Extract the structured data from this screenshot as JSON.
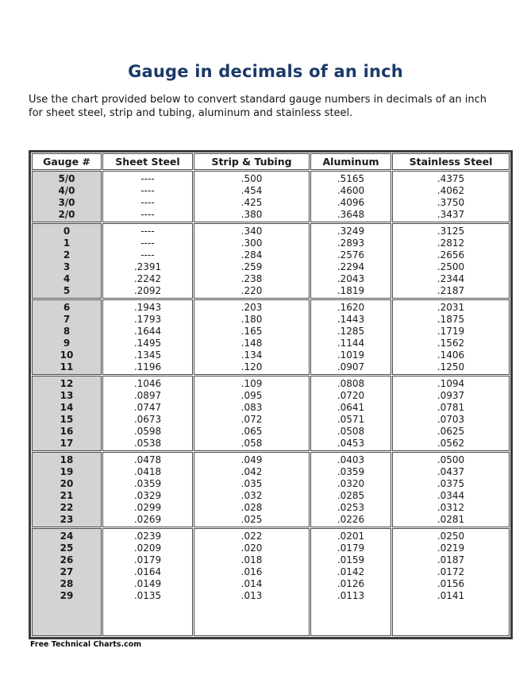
{
  "page": {
    "title": "Gauge in decimals of an inch",
    "description": "Use the chart provided below to convert standard gauge numbers in decimals of an inch for sheet steel, strip and tubing, aluminum and stainless steel.",
    "footer": "Free Technical Charts.com"
  },
  "colors": {
    "title": "#1b3a68",
    "text": "#1a1a1a",
    "border": "#4a4a4a",
    "outer_border": "#3a3a3a",
    "gauge_column_background": "#d3d3d3",
    "page_background": "#ffffff"
  },
  "chart_data": {
    "type": "table",
    "title": "Gauge in decimals of an inch",
    "columns": [
      "Gauge #",
      "Sheet Steel",
      "Strip & Tubing",
      "Aluminum",
      "Stainless Steel"
    ],
    "no_value_marker": "----",
    "groups": [
      [
        [
          "5/0",
          "----",
          ".500",
          ".5165",
          ".4375"
        ],
        [
          "4/0",
          "----",
          ".454",
          ".4600",
          ".4062"
        ],
        [
          "3/0",
          "----",
          ".425",
          ".4096",
          ".3750"
        ],
        [
          "2/0",
          "----",
          ".380",
          ".3648",
          ".3437"
        ]
      ],
      [
        [
          "0",
          "----",
          ".340",
          ".3249",
          ".3125"
        ],
        [
          "1",
          "----",
          ".300",
          ".2893",
          ".2812"
        ],
        [
          "2",
          "----",
          ".284",
          ".2576",
          ".2656"
        ],
        [
          "3",
          ".2391",
          ".259",
          ".2294",
          ".2500"
        ],
        [
          "4",
          ".2242",
          ".238",
          ".2043",
          ".2344"
        ],
        [
          "5",
          ".2092",
          ".220",
          ".1819",
          ".2187"
        ]
      ],
      [
        [
          "6",
          ".1943",
          ".203",
          ".1620",
          ".2031"
        ],
        [
          "7",
          ".1793",
          ".180",
          ".1443",
          ".1875"
        ],
        [
          "8",
          ".1644",
          ".165",
          ".1285",
          ".1719"
        ],
        [
          "9",
          ".1495",
          ".148",
          ".1144",
          ".1562"
        ],
        [
          "10",
          ".1345",
          ".134",
          ".1019",
          ".1406"
        ],
        [
          "11",
          ".1196",
          ".120",
          ".0907",
          ".1250"
        ]
      ],
      [
        [
          "12",
          ".1046",
          ".109",
          ".0808",
          ".1094"
        ],
        [
          "13",
          ".0897",
          ".095",
          ".0720",
          ".0937"
        ],
        [
          "14",
          ".0747",
          ".083",
          ".0641",
          ".0781"
        ],
        [
          "15",
          ".0673",
          ".072",
          ".0571",
          ".0703"
        ],
        [
          "16",
          ".0598",
          ".065",
          ".0508",
          ".0625"
        ],
        [
          "17",
          ".0538",
          ".058",
          ".0453",
          ".0562"
        ]
      ],
      [
        [
          "18",
          ".0478",
          ".049",
          ".0403",
          ".0500"
        ],
        [
          "19",
          ".0418",
          ".042",
          ".0359",
          ".0437"
        ],
        [
          "20",
          ".0359",
          ".035",
          ".0320",
          ".0375"
        ],
        [
          "21",
          ".0329",
          ".032",
          ".0285",
          ".0344"
        ],
        [
          "22",
          ".0299",
          ".028",
          ".0253",
          ".0312"
        ],
        [
          "23",
          ".0269",
          ".025",
          ".0226",
          ".0281"
        ]
      ],
      [
        [
          "24",
          ".0239",
          ".022",
          ".0201",
          ".0250"
        ],
        [
          "25",
          ".0209",
          ".020",
          ".0179",
          ".0219"
        ],
        [
          "26",
          ".0179",
          ".018",
          ".0159",
          ".0187"
        ],
        [
          "27",
          ".0164",
          ".016",
          ".0142",
          ".0172"
        ],
        [
          "28",
          ".0149",
          ".014",
          ".0126",
          ".0156"
        ],
        [
          "29",
          ".0135",
          ".013",
          ".0113",
          ".0141"
        ]
      ]
    ]
  }
}
